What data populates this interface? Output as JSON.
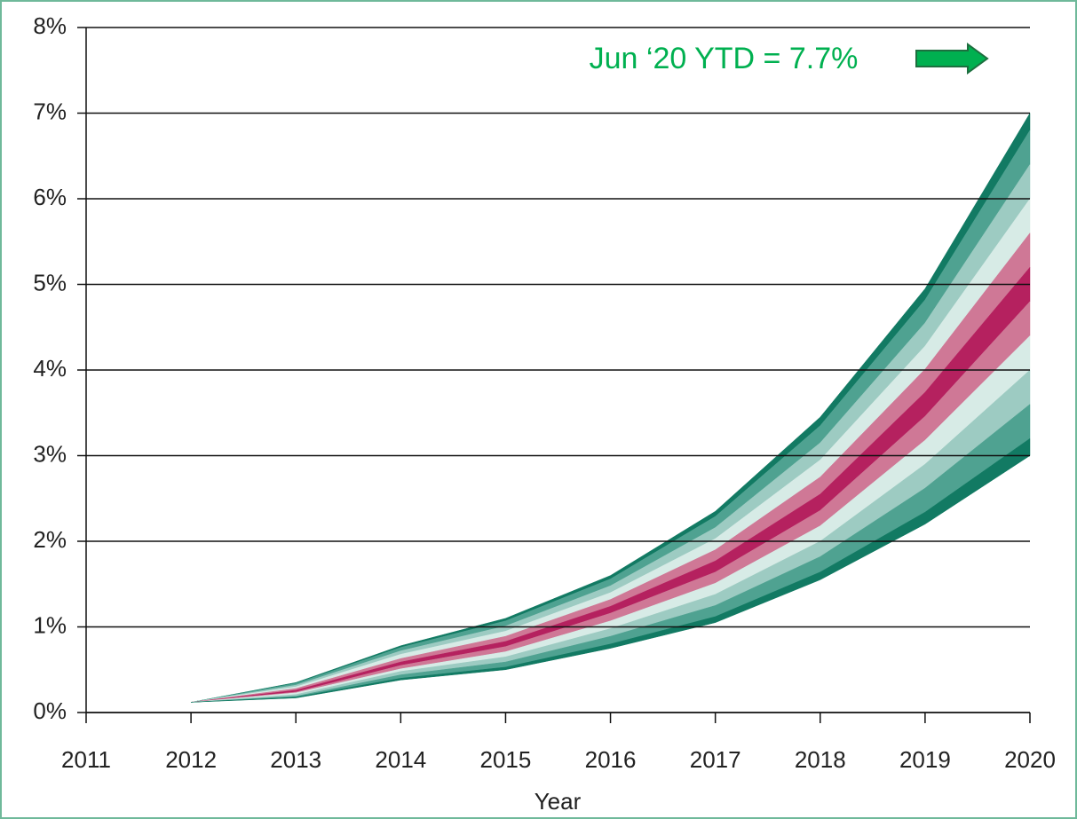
{
  "chart_data": {
    "type": "fan",
    "x": [
      2012,
      2013,
      2014,
      2015,
      2016,
      2017,
      2018,
      2019,
      2020
    ],
    "series": [
      {
        "values": [
          0.12,
          0.35,
          0.78,
          1.1,
          1.6,
          2.35,
          3.45,
          4.95,
          7.0
        ]
      },
      {
        "values": [
          0.12,
          0.34,
          0.76,
          1.07,
          1.56,
          2.29,
          3.35,
          4.82,
          6.8
        ]
      },
      {
        "values": [
          0.12,
          0.32,
          0.72,
          1.01,
          1.48,
          2.16,
          3.15,
          4.55,
          6.4
        ]
      },
      {
        "values": [
          0.12,
          0.3,
          0.68,
          0.95,
          1.4,
          2.03,
          2.95,
          4.28,
          6.0
        ]
      },
      {
        "values": [
          0.12,
          0.28,
          0.63,
          0.89,
          1.32,
          1.9,
          2.75,
          4.01,
          5.6
        ]
      },
      {
        "values": [
          0.12,
          0.26,
          0.59,
          0.83,
          1.24,
          1.77,
          2.55,
          3.74,
          5.2
        ]
      },
      {
        "values": [
          0.12,
          0.24,
          0.55,
          0.77,
          1.16,
          1.64,
          2.36,
          3.46,
          4.8
        ]
      },
      {
        "values": [
          0.12,
          0.23,
          0.51,
          0.71,
          1.07,
          1.51,
          2.18,
          3.18,
          4.4
        ]
      },
      {
        "values": [
          0.12,
          0.21,
          0.48,
          0.65,
          0.98,
          1.38,
          2.0,
          2.9,
          4.0
        ]
      },
      {
        "values": [
          0.12,
          0.19,
          0.44,
          0.59,
          0.89,
          1.25,
          1.82,
          2.62,
          3.6
        ]
      },
      {
        "values": [
          0.12,
          0.18,
          0.4,
          0.53,
          0.8,
          1.12,
          1.64,
          2.34,
          3.2
        ]
      },
      {
        "values": [
          0.12,
          0.17,
          0.38,
          0.5,
          0.75,
          1.05,
          1.55,
          2.2,
          3.0
        ]
      }
    ],
    "band_colors": [
      "#127a63",
      "#4fa291",
      "#9dcbc2",
      "#d7ebe6",
      "#cf7896",
      "#b5215f",
      "#cf7896",
      "#d7ebe6",
      "#9dcbc2",
      "#4fa291",
      "#127a63"
    ],
    "xlim": [
      2011,
      2020
    ],
    "xticks": [
      2011,
      2012,
      2013,
      2014,
      2015,
      2016,
      2017,
      2018,
      2019,
      2020
    ],
    "ylim": [
      0,
      8
    ],
    "yticks": [
      {
        "value": 0,
        "label": "0%"
      },
      {
        "value": 1,
        "label": "1%"
      },
      {
        "value": 2,
        "label": "2%"
      },
      {
        "value": 3,
        "label": "3%"
      },
      {
        "value": 4,
        "label": "4%"
      },
      {
        "value": 5,
        "label": "5%"
      },
      {
        "value": 6,
        "label": "6%"
      },
      {
        "value": 7,
        "label": "7%"
      },
      {
        "value": 8,
        "label": "8%"
      }
    ],
    "grid": true,
    "xlabel": "Year",
    "annotation": "Jun ‘20 YTD = 7.7%",
    "annotation_color": "#00b050"
  }
}
